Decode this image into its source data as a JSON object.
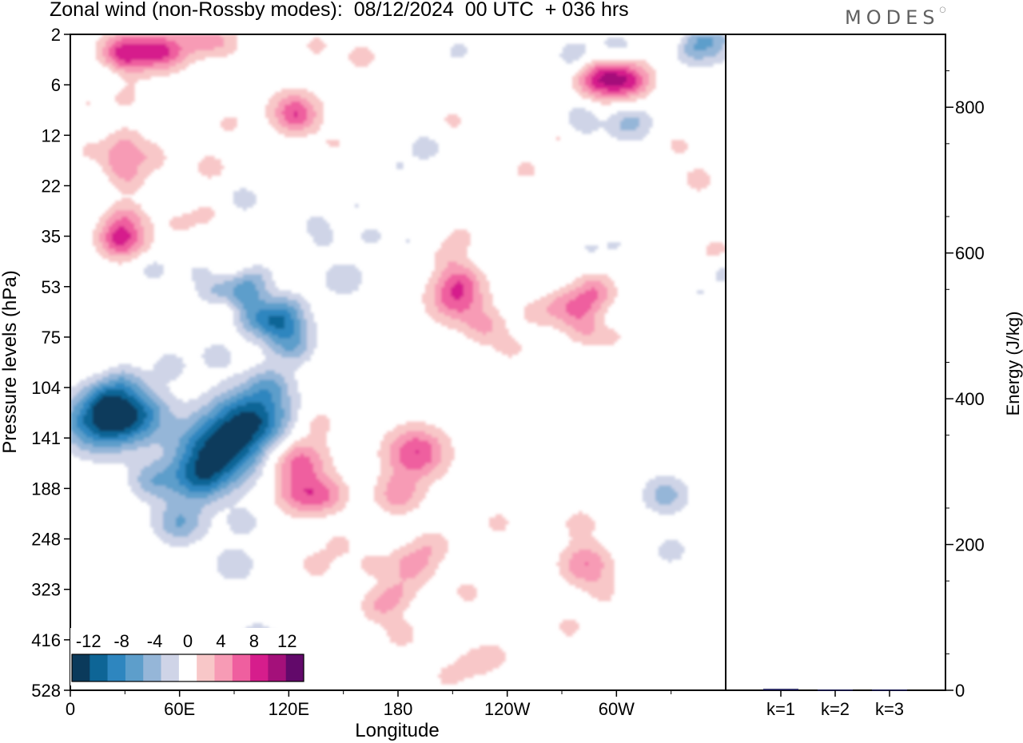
{
  "header": {
    "title": "Zonal wind (non-Rossby modes):  08/12/2024  00 UTC  + 036 hrs",
    "brand": "MODES"
  },
  "chart_data": [
    {
      "type": "heatmap",
      "title": "Zonal wind (non-Rossby modes):  08/12/2024  00 UTC  + 036 hrs",
      "xlabel": "Longitude",
      "ylabel": "Pressure levels (hPa)",
      "x_ticks": [
        "0",
        "60E",
        "120E",
        "180",
        "120W",
        "60W"
      ],
      "x_tick_degrees": [
        0,
        60,
        120,
        180,
        240,
        300
      ],
      "xlim": [
        0,
        360
      ],
      "y_ticks": [
        "2",
        "6",
        "12",
        "22",
        "35",
        "53",
        "75",
        "104",
        "141",
        "188",
        "248",
        "323",
        "416",
        "528"
      ],
      "colorbar": {
        "levels": [
          -14,
          -12,
          -10,
          -8,
          -6,
          -4,
          -2,
          2,
          4,
          6,
          8,
          10,
          12,
          14
        ],
        "labels": [
          "-12",
          "-8",
          "-4",
          "0",
          "4",
          "8",
          "12"
        ],
        "label_values": [
          -12,
          -8,
          -4,
          0,
          4,
          8,
          12
        ],
        "colors": [
          "#0b3a5b",
          "#0e6596",
          "#2e86bf",
          "#5d9ecb",
          "#95b6d8",
          "#cfd4e7",
          "#ffffff",
          "#f8c7c8",
          "#f79bb5",
          "#ef5f9f",
          "#d61d8c",
          "#a4107a",
          "#62096a"
        ]
      },
      "features": [
        {
          "lon": 20,
          "lev": 3,
          "value": -2
        },
        {
          "lon": 27,
          "lev": 1.5,
          "value": 3
        },
        {
          "lon": 33,
          "lev": 1.2,
          "value": 7
        },
        {
          "lon": 48,
          "lev": 1.1,
          "value": 2.6
        },
        {
          "lon": 54,
          "lev": 1.3,
          "value": 5
        },
        {
          "lon": 68,
          "lev": 0.4,
          "value": 3
        },
        {
          "lon": 82,
          "lev": 0.5,
          "value": 4
        },
        {
          "lon": 135,
          "lev": 0.8,
          "value": 2.5
        },
        {
          "lon": 160,
          "lev": 1.6,
          "value": 3
        },
        {
          "lon": 213,
          "lev": 1.2,
          "value": -2.5
        },
        {
          "lon": 278,
          "lev": 1.6,
          "value": -4
        },
        {
          "lon": 300,
          "lev": 1.2,
          "value": -5
        },
        {
          "lon": 338,
          "lev": 1,
          "value": -3
        },
        {
          "lon": 350,
          "lev": 0.5,
          "value": -6
        },
        {
          "lon": 332,
          "lev": 0.3,
          "value": 3
        },
        {
          "lon": 192,
          "lev": 3.5,
          "value": -2
        },
        {
          "lon": 288,
          "lev": 3.2,
          "value": 4
        },
        {
          "lon": 298,
          "lev": 2.9,
          "value": 8
        },
        {
          "lon": 308,
          "lev": 3.4,
          "value": 4
        },
        {
          "lon": 70,
          "lev": 4,
          "value": -2
        },
        {
          "lon": 90,
          "lev": 3,
          "value": -1.5
        },
        {
          "lon": 30,
          "lev": 4.5,
          "value": 2.5
        },
        {
          "lon": 10,
          "lev": 5,
          "value": 2
        },
        {
          "lon": 123,
          "lev": 5.5,
          "value": 6
        },
        {
          "lon": 125,
          "lev": 6,
          "value": 2.5
        },
        {
          "lon": 87,
          "lev": 6.4,
          "value": 2.5
        },
        {
          "lon": 280,
          "lev": 6.5,
          "value": -3
        },
        {
          "lon": 307,
          "lev": 6.3,
          "value": -5
        },
        {
          "lon": 280,
          "lev": 5.5,
          "value": -2
        },
        {
          "lon": 340,
          "lev": 6.3,
          "value": -2
        },
        {
          "lon": 195,
          "lev": 8.1,
          "value": -3
        },
        {
          "lon": 210,
          "lev": 6.2,
          "value": 2.4
        },
        {
          "lon": 270,
          "lev": 7.3,
          "value": 2.6
        },
        {
          "lon": 334,
          "lev": 7.9,
          "value": 2.6
        },
        {
          "lon": 30,
          "lev": 7.7,
          "value": 3.5
        },
        {
          "lon": 145,
          "lev": 8,
          "value": 2.5
        },
        {
          "lon": 45,
          "lev": 8.8,
          "value": 3
        },
        {
          "lon": 77,
          "lev": 9.5,
          "value": 3
        },
        {
          "lon": 10,
          "lev": 8.5,
          "value": 2.5
        },
        {
          "lon": 27,
          "lev": 9.3,
          "value": 4
        },
        {
          "lon": 33,
          "lev": 10.5,
          "value": 2.5
        },
        {
          "lon": 8,
          "lev": 9.8,
          "value": -2
        },
        {
          "lon": 144,
          "lev": 9.2,
          "value": -2
        },
        {
          "lon": 180,
          "lev": 9.5,
          "value": -2
        },
        {
          "lon": 250,
          "lev": 9.7,
          "value": 2.5
        },
        {
          "lon": 345,
          "lev": 10.4,
          "value": 3
        },
        {
          "lon": 55,
          "lev": 11.6,
          "value": -2
        },
        {
          "lon": 95,
          "lev": 11.8,
          "value": -3
        },
        {
          "lon": 157,
          "lev": 12.2,
          "value": -2
        },
        {
          "lon": 202,
          "lev": 11,
          "value": -2
        },
        {
          "lon": 30,
          "lev": 13,
          "value": 3.5
        },
        {
          "lon": 30,
          "lev": 14.7,
          "value": 6
        },
        {
          "lon": 25,
          "lev": 14.7,
          "value": 3
        },
        {
          "lon": 60,
          "lev": 13.5,
          "value": 2.5
        },
        {
          "lon": 75,
          "lev": 12.8,
          "value": 2.5
        },
        {
          "lon": 135,
          "lev": 13.6,
          "value": -2.5
        },
        {
          "lon": 140,
          "lev": 14.8,
          "value": -2
        },
        {
          "lon": 165,
          "lev": 14.5,
          "value": -2.5
        },
        {
          "lon": 185,
          "lev": 14.7,
          "value": -2
        },
        {
          "lon": 215,
          "lev": 14.5,
          "value": 2.5
        },
        {
          "lon": 207,
          "lev": 15.8,
          "value": 2.5
        },
        {
          "lon": 285,
          "lev": 15.3,
          "value": -2
        },
        {
          "lon": 300,
          "lev": 15.1,
          "value": -2
        },
        {
          "lon": 330,
          "lev": 15,
          "value": -2
        },
        {
          "lon": 5,
          "lev": 16.5,
          "value": -2
        },
        {
          "lon": 90,
          "lev": 16.3,
          "value": 2.5
        },
        {
          "lon": 70,
          "lev": 17,
          "value": -2
        },
        {
          "lon": 360,
          "lev": 17,
          "value": -3
        },
        {
          "lon": 355,
          "lev": 15.5,
          "value": 3
        },
        {
          "lon": 45,
          "lev": 16.8,
          "value": -3
        },
        {
          "lon": 100,
          "lev": 17.5,
          "value": -4
        },
        {
          "lon": 150,
          "lev": 17.5,
          "value": -4
        },
        {
          "lon": 214,
          "lev": 17.5,
          "value": 4
        },
        {
          "lon": 212,
          "lev": 19,
          "value": 7
        },
        {
          "lon": 228,
          "lev": 21,
          "value": 4
        },
        {
          "lon": 242,
          "lev": 22.5,
          "value": 2.5
        },
        {
          "lon": 255,
          "lev": 20,
          "value": 2.5
        },
        {
          "lon": 270,
          "lev": 19.6,
          "value": 4
        },
        {
          "lon": 285,
          "lev": 19,
          "value": 5
        },
        {
          "lon": 283,
          "lev": 21,
          "value": 4
        },
        {
          "lon": 297,
          "lev": 21.5,
          "value": 2.5
        },
        {
          "lon": 290,
          "lev": 18,
          "value": 2.5
        },
        {
          "lon": 295,
          "lev": 20.5,
          "value": -2
        },
        {
          "lon": 325,
          "lev": 19.2,
          "value": -2
        },
        {
          "lon": 345,
          "lev": 18.5,
          "value": -2
        },
        {
          "lon": 85,
          "lev": 19.7,
          "value": 3
        },
        {
          "lon": 80,
          "lev": 18.5,
          "value": -4
        },
        {
          "lon": 95,
          "lev": 18.7,
          "value": -4
        },
        {
          "lon": 100,
          "lev": 20.2,
          "value": -5
        },
        {
          "lon": 112,
          "lev": 20.5,
          "value": -3
        },
        {
          "lon": 120,
          "lev": 19.5,
          "value": -3
        },
        {
          "lon": 118,
          "lev": 21,
          "value": -6
        },
        {
          "lon": 122,
          "lev": 22.5,
          "value": -4
        },
        {
          "lon": 80,
          "lev": 23,
          "value": -3
        },
        {
          "lon": 55,
          "lev": 23.7,
          "value": -3
        },
        {
          "lon": 110,
          "lev": 25,
          "value": -4
        },
        {
          "lon": 30,
          "lev": 24.7,
          "value": -3
        },
        {
          "lon": 20,
          "lev": 26,
          "value": -4
        },
        {
          "lon": 35,
          "lev": 27.2,
          "value": -9
        },
        {
          "lon": 15,
          "lev": 27.8,
          "value": -10
        },
        {
          "lon": 100,
          "lev": 27.5,
          "value": -11
        },
        {
          "lon": 80,
          "lev": 30,
          "value": -12
        },
        {
          "lon": 70,
          "lev": 32,
          "value": -6
        },
        {
          "lon": 60,
          "lev": 35,
          "value": -6
        },
        {
          "lon": 45,
          "lev": 32,
          "value": -5
        },
        {
          "lon": 95,
          "lev": 35,
          "value": -3
        },
        {
          "lon": 90,
          "lev": 38,
          "value": -4
        },
        {
          "lon": 25,
          "lev": 38.5,
          "value": -2
        },
        {
          "lon": 75,
          "lev": 42,
          "value": -2
        },
        {
          "lon": 102,
          "lev": 43,
          "value": -3
        },
        {
          "lon": 112,
          "lev": 44,
          "value": -3
        },
        {
          "lon": 97,
          "lev": 46,
          "value": -2
        },
        {
          "lon": 125,
          "lev": 30.5,
          "value": 7
        },
        {
          "lon": 127,
          "lev": 33,
          "value": 6
        },
        {
          "lon": 136,
          "lev": 27.8,
          "value": 3
        },
        {
          "lon": 135,
          "lev": 38,
          "value": 3
        },
        {
          "lon": 142,
          "lev": 33,
          "value": 4
        },
        {
          "lon": 148,
          "lev": 36.5,
          "value": 2.6
        },
        {
          "lon": 190,
          "lev": 30,
          "value": 8
        },
        {
          "lon": 180,
          "lev": 33,
          "value": 5
        },
        {
          "lon": 188,
          "lev": 38,
          "value": 5
        },
        {
          "lon": 180,
          "lev": 40,
          "value": 3
        },
        {
          "lon": 182,
          "lev": 43,
          "value": 3
        },
        {
          "lon": 170,
          "lev": 41,
          "value": 4
        },
        {
          "lon": 165,
          "lev": 38,
          "value": 2.6
        },
        {
          "lon": 200,
          "lev": 36.5,
          "value": 3
        },
        {
          "lon": 222,
          "lev": 45,
          "value": 3
        },
        {
          "lon": 233,
          "lev": 44.5,
          "value": 2.6
        },
        {
          "lon": 208,
          "lev": 46,
          "value": 2.6
        },
        {
          "lon": 218,
          "lev": 40,
          "value": 2.6
        },
        {
          "lon": 235,
          "lev": 35,
          "value": 2.6
        },
        {
          "lon": 283,
          "lev": 38,
          "value": 6
        },
        {
          "lon": 280,
          "lev": 35,
          "value": 3
        },
        {
          "lon": 295,
          "lev": 40,
          "value": 2.6
        },
        {
          "lon": 274,
          "lev": 42.5,
          "value": 2.6
        },
        {
          "lon": 290,
          "lev": 44,
          "value": -2
        },
        {
          "lon": 307,
          "lev": 40,
          "value": -2
        },
        {
          "lon": 327,
          "lev": 33,
          "value": -5
        },
        {
          "lon": 330,
          "lev": 37,
          "value": -3
        },
        {
          "lon": 337,
          "lev": 41,
          "value": -2
        },
        {
          "lon": 355,
          "lev": 45,
          "value": -2
        },
        {
          "lon": 360,
          "lev": 40,
          "value": -2
        }
      ]
    },
    {
      "type": "bar",
      "categories": [
        "k=1",
        "k=2",
        "k=3"
      ],
      "values": [
        2,
        1,
        1
      ],
      "ylabel": "Energy (J/kg)",
      "ylim": [
        0,
        900
      ],
      "y_ticks": [
        "0",
        "200",
        "400",
        "600",
        "800"
      ],
      "y_tick_values": [
        0,
        200,
        400,
        600,
        800
      ],
      "bar_color": "#1e1e5a"
    }
  ]
}
